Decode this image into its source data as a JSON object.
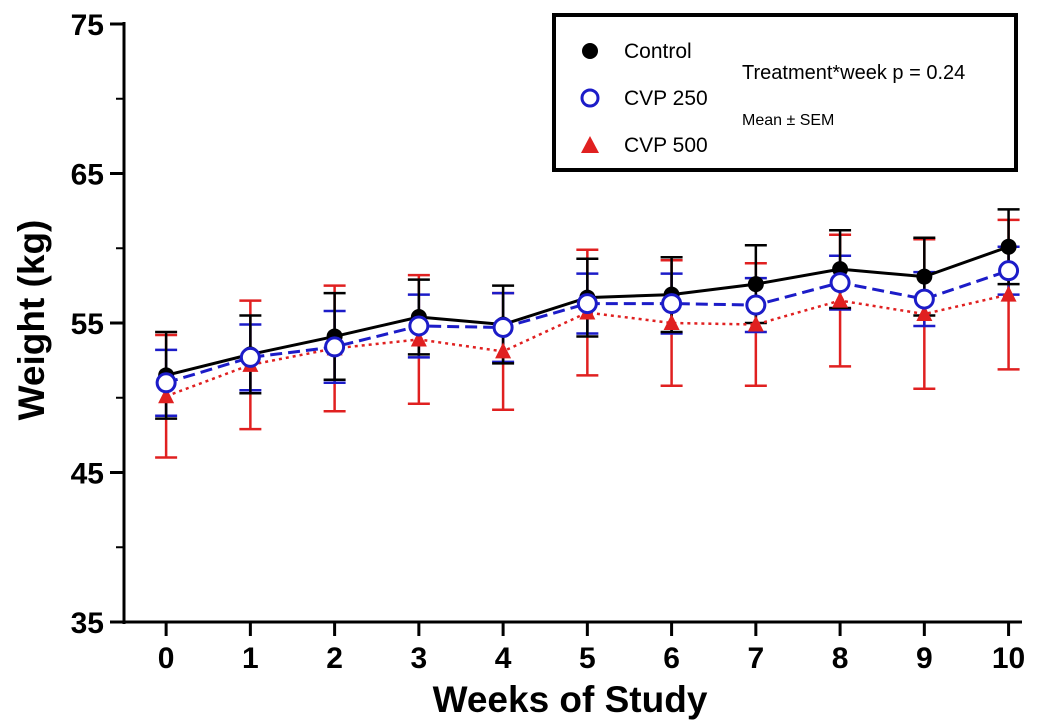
{
  "chart_data": {
    "type": "line",
    "title": "",
    "xlabel": "Weeks of Study",
    "ylabel": "Weight (kg)",
    "x": [
      0,
      1,
      2,
      3,
      4,
      5,
      6,
      7,
      8,
      9,
      10
    ],
    "x_ticks": [
      "0",
      "1",
      "2",
      "3",
      "4",
      "5",
      "6",
      "7",
      "8",
      "9",
      "10"
    ],
    "xlim": [
      -0.5,
      10.1
    ],
    "ylim": [
      35,
      75
    ],
    "y_ticks": [
      "35",
      "45",
      "55",
      "65",
      "75"
    ],
    "y_minor_ticks": [
      40,
      50,
      60,
      70
    ],
    "grid": false,
    "legend_position": "top-right",
    "series": [
      {
        "name": "Control",
        "marker": "filled-circle",
        "color": "#000000",
        "line_style": "solid",
        "values": [
          51.5,
          52.9,
          54.1,
          55.4,
          54.9,
          56.7,
          56.9,
          57.6,
          58.6,
          58.1,
          60.1
        ],
        "error": [
          2.9,
          2.6,
          2.9,
          2.5,
          2.6,
          2.6,
          2.5,
          2.6,
          2.6,
          2.6,
          2.5
        ]
      },
      {
        "name": "CVP 250",
        "marker": "open-circle",
        "color": "#1c1cc8",
        "line_style": "dashed",
        "values": [
          51.0,
          52.7,
          53.4,
          54.8,
          54.7,
          56.3,
          56.3,
          56.2,
          57.7,
          56.6,
          58.5
        ],
        "error": [
          2.2,
          2.2,
          2.4,
          2.1,
          2.3,
          2.0,
          2.0,
          1.8,
          1.8,
          1.8,
          1.6
        ]
      },
      {
        "name": "CVP 500",
        "marker": "filled-triangle",
        "color": "#e02020",
        "line_style": "dotted",
        "values": [
          50.1,
          52.2,
          53.3,
          53.9,
          53.1,
          55.7,
          55.0,
          54.9,
          56.5,
          55.6,
          56.9
        ],
        "error": [
          4.1,
          4.3,
          4.2,
          4.3,
          3.9,
          4.2,
          4.2,
          4.1,
          4.4,
          5.0,
          5.0
        ]
      }
    ],
    "annotations": [
      "Treatment*week p = 0.24",
      "Mean ± SEM"
    ]
  }
}
